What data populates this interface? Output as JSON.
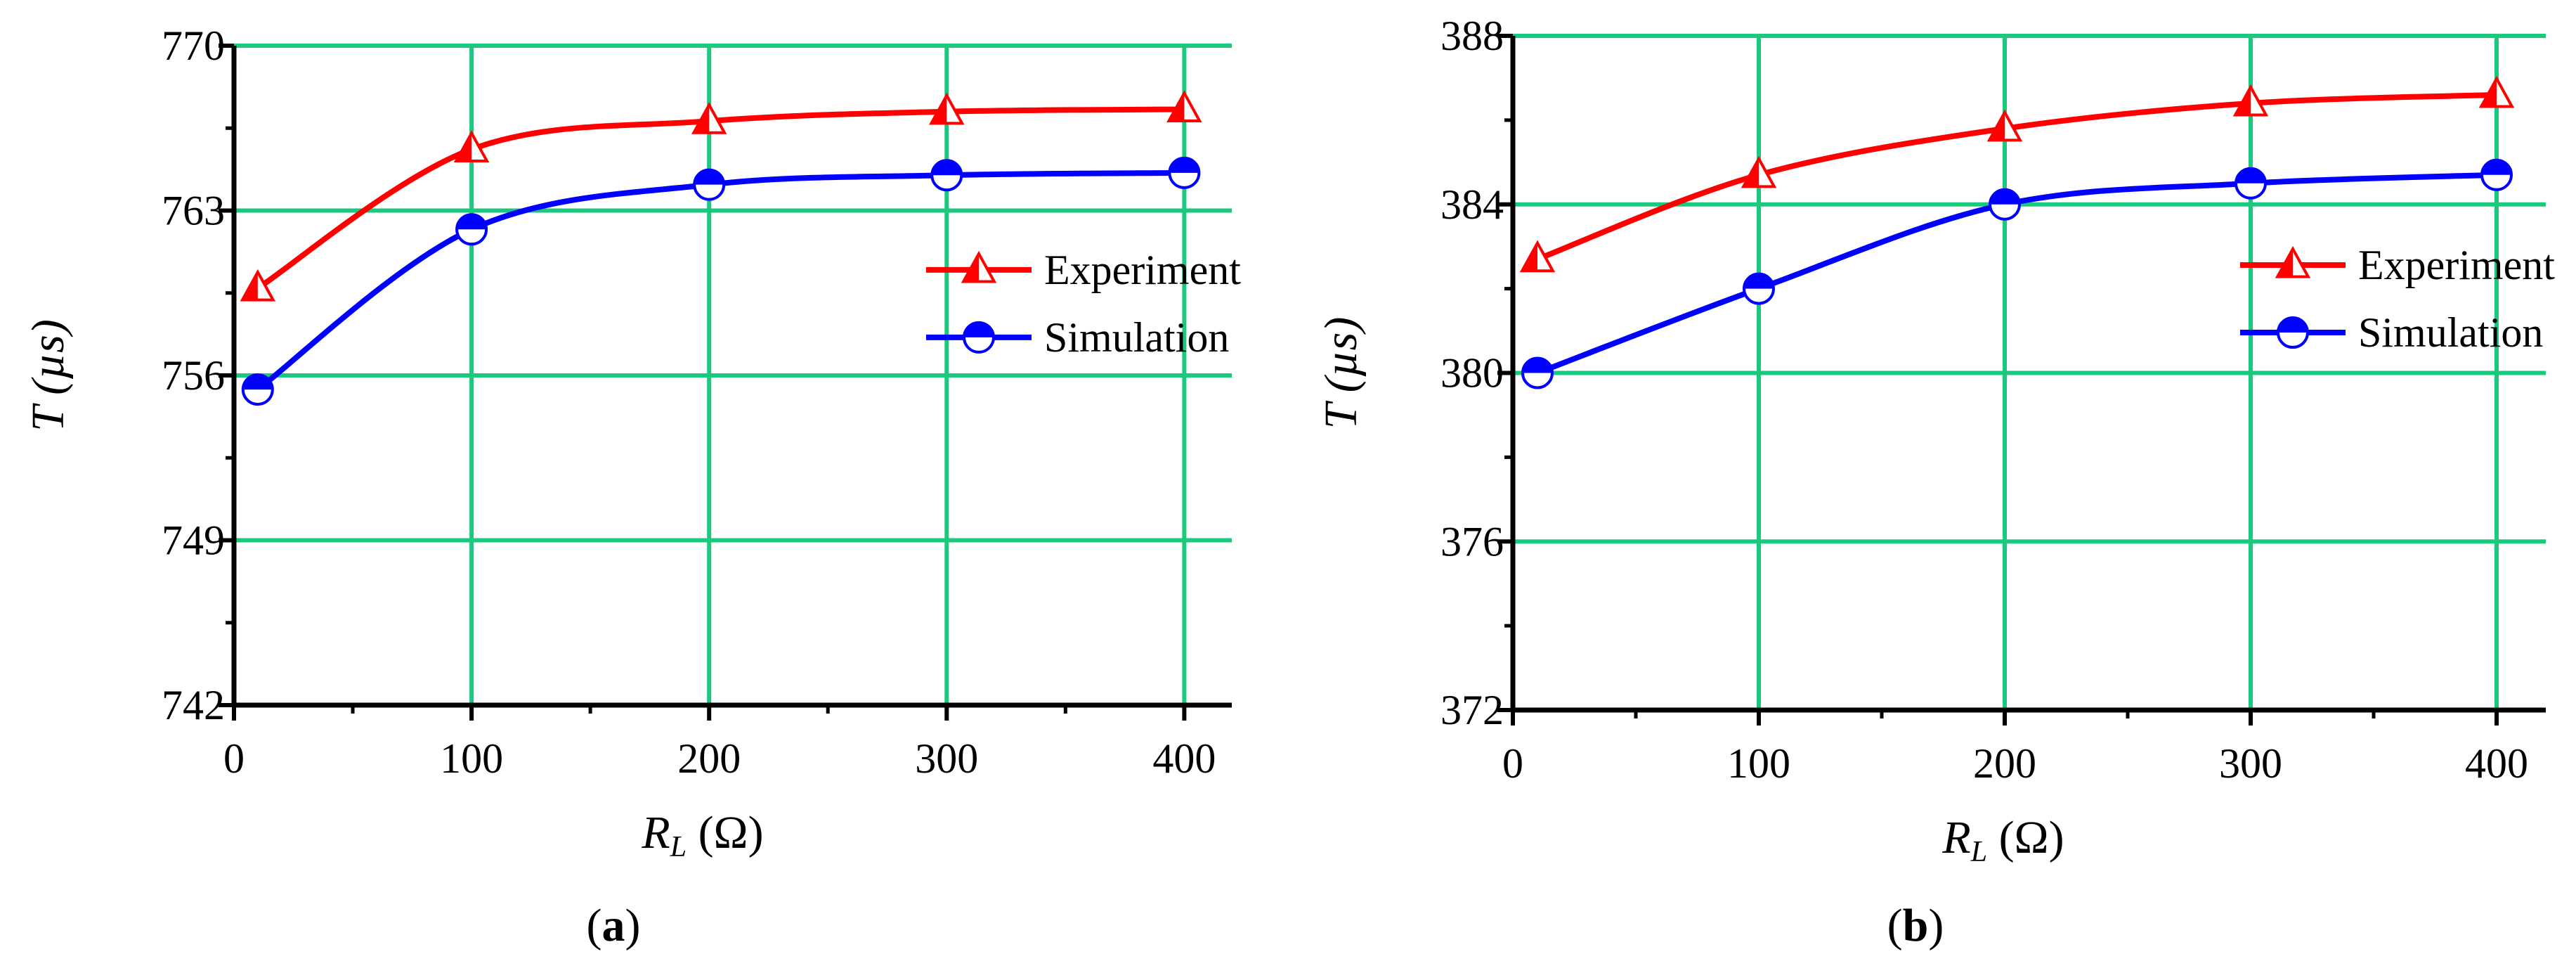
{
  "charts": [
    {
      "type": "line",
      "panel_label": "a",
      "xlabel_main": "R",
      "xlabel_sub": "L",
      "xlabel_unit": "Ω",
      "ylabel_main": "T",
      "ylabel_unit": "µs",
      "xlim": [
        0,
        420
      ],
      "ylim": [
        742,
        770
      ],
      "x_ticks": [
        0,
        100,
        200,
        300,
        400
      ],
      "x_tick_labels": [
        "0",
        "100",
        "200",
        "300",
        "400"
      ],
      "y_ticks": [
        742,
        749,
        756,
        763,
        770
      ],
      "y_tick_labels": [
        "742",
        "749",
        "756",
        "763",
        "770"
      ],
      "grid": true,
      "grid_color": "#1ac97e",
      "legend_position": "right",
      "series": [
        {
          "name": "Experiment",
          "color": "#ff0000",
          "marker": "triangle-open",
          "x": [
            10,
            100,
            200,
            300,
            400
          ],
          "y": [
            759.7,
            765.6,
            766.8,
            767.2,
            767.3
          ]
        },
        {
          "name": "Simulation",
          "color": "#0000ff",
          "marker": "circle-half",
          "x": [
            10,
            100,
            200,
            300,
            400
          ],
          "y": [
            755.4,
            762.2,
            764.1,
            764.5,
            764.6
          ]
        }
      ]
    },
    {
      "type": "line",
      "panel_label": "b",
      "xlabel_main": "R",
      "xlabel_sub": "L",
      "xlabel_unit": "Ω",
      "ylabel_main": "T",
      "ylabel_unit": "µs",
      "xlim": [
        0,
        420
      ],
      "ylim": [
        372,
        388
      ],
      "x_ticks": [
        0,
        100,
        200,
        300,
        400
      ],
      "x_tick_labels": [
        "0",
        "100",
        "200",
        "300",
        "400"
      ],
      "y_ticks": [
        372,
        376,
        380,
        384,
        388
      ],
      "y_tick_labels": [
        "372",
        "376",
        "380",
        "384",
        "388"
      ],
      "grid": true,
      "grid_color": "#1ac97e",
      "legend_position": "right",
      "series": [
        {
          "name": "Experiment",
          "color": "#ff0000",
          "marker": "triangle-open",
          "x": [
            10,
            100,
            200,
            300,
            400
          ],
          "y": [
            382.7,
            384.7,
            385.8,
            386.4,
            386.6
          ]
        },
        {
          "name": "Simulation",
          "color": "#0000ff",
          "marker": "circle-half",
          "x": [
            10,
            100,
            200,
            300,
            400
          ],
          "y": [
            380.0,
            382.0,
            384.0,
            384.5,
            384.7
          ]
        }
      ]
    }
  ],
  "chart_data": [
    {
      "type": "line",
      "title": "(a)",
      "xlabel": "R_L (Ω)",
      "ylabel": "T (µs)",
      "xlim": [
        0,
        420
      ],
      "ylim": [
        742,
        770
      ],
      "x": [
        10,
        100,
        200,
        300,
        400
      ],
      "series": [
        {
          "name": "Experiment",
          "values": [
            759.7,
            765.6,
            766.8,
            767.2,
            767.3
          ]
        },
        {
          "name": "Simulation",
          "values": [
            755.4,
            762.2,
            764.1,
            764.5,
            764.6
          ]
        }
      ],
      "grid": true,
      "legend": "right"
    },
    {
      "type": "line",
      "title": "(b)",
      "xlabel": "R_L (Ω)",
      "ylabel": "T (µs)",
      "xlim": [
        0,
        420
      ],
      "ylim": [
        372,
        388
      ],
      "x": [
        10,
        100,
        200,
        300,
        400
      ],
      "series": [
        {
          "name": "Experiment",
          "values": [
            382.7,
            384.7,
            385.8,
            386.4,
            386.6
          ]
        },
        {
          "name": "Simulation",
          "values": [
            380.0,
            382.0,
            384.0,
            384.5,
            384.7
          ]
        }
      ],
      "grid": true,
      "legend": "right"
    }
  ]
}
